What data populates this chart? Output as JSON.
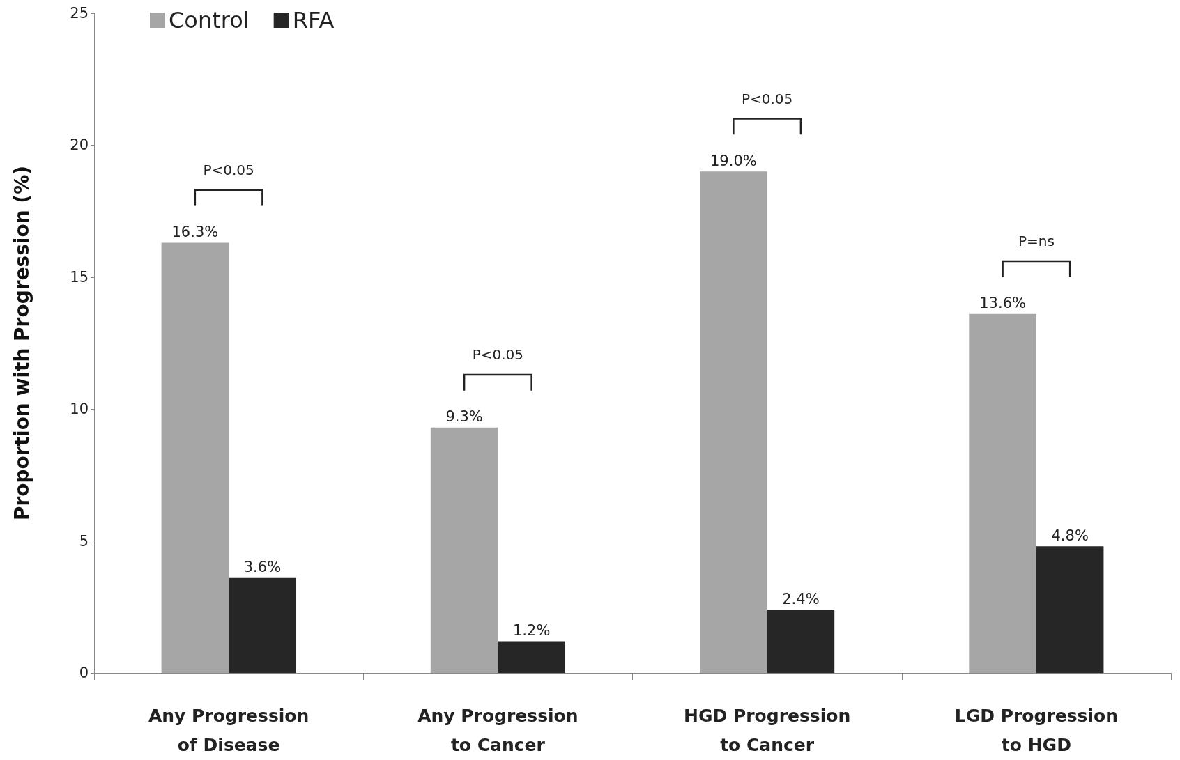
{
  "chart_data": {
    "type": "bar",
    "ylabel": "Proportion with Progression (%)",
    "categories": [
      "Any Progression\nof Disease",
      "Any Progression\nto Cancer",
      "HGD Progression\nto Cancer",
      "LGD Progression\nto HGD"
    ],
    "series": [
      {
        "name": "Control",
        "color": "#a6a6a6",
        "values": [
          16.3,
          9.3,
          19.0,
          13.6
        ],
        "value_labels": [
          "16.3%",
          "9.3%",
          "19.0%",
          "13.6%"
        ]
      },
      {
        "name": "RFA",
        "color": "#262626",
        "values": [
          3.6,
          1.2,
          2.4,
          4.8
        ],
        "value_labels": [
          "3.6%",
          "1.2%",
          "2.4%",
          "4.8%"
        ]
      }
    ],
    "ylim": [
      0,
      25
    ],
    "yticks": [
      0,
      5,
      10,
      15,
      20,
      25
    ],
    "grid": false,
    "legend": "top left",
    "annotations": [
      "P<0.05",
      "P<0.05",
      "P<0.05",
      "P=ns"
    ]
  }
}
